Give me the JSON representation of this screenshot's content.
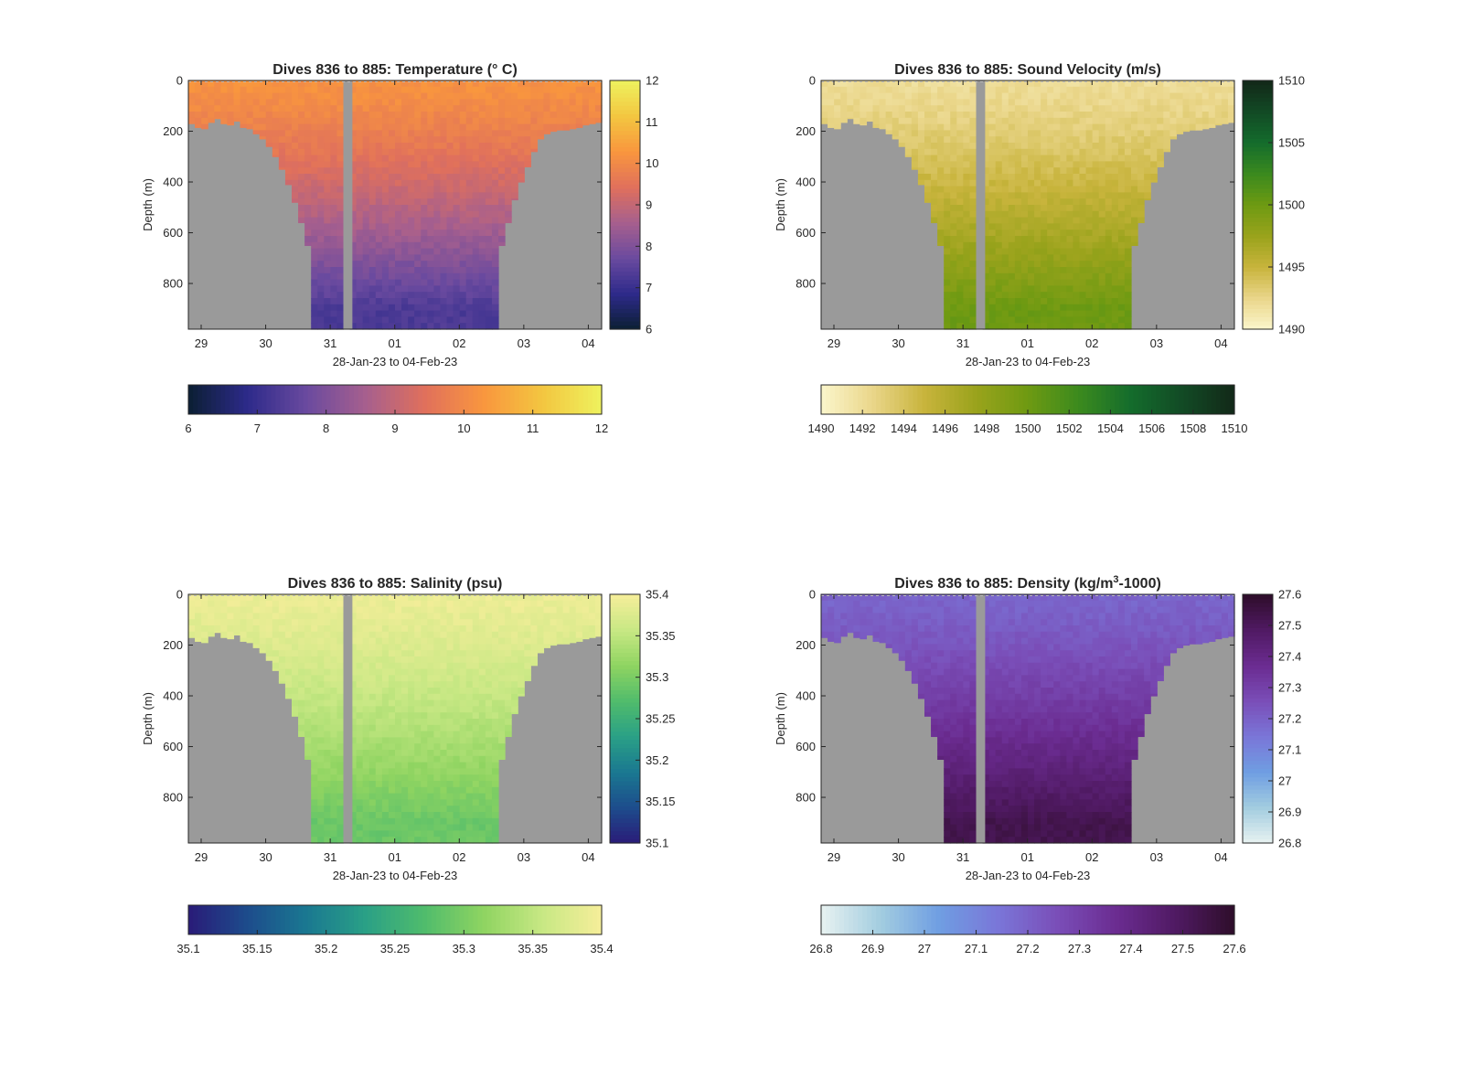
{
  "chart_data": [
    {
      "type": "heatmap",
      "title": "Dives 836 to 885: Temperature (° C)",
      "xlabel": "28-Jan-23 to 04-Feb-23",
      "ylabel": "Depth (m)",
      "x_ticks": [
        "29",
        "30",
        "31",
        "01",
        "02",
        "03",
        "04"
      ],
      "y_ticks": [
        "0",
        "200",
        "400",
        "600",
        "800"
      ],
      "ylim": [
        0,
        980
      ],
      "side_colorbar_ticks": [
        "12",
        "11",
        "10",
        "9",
        "8",
        "7",
        "6"
      ],
      "bottom_colorbar_ticks": [
        "6",
        "7",
        "8",
        "9",
        "10",
        "11",
        "12"
      ],
      "clim": [
        6,
        12
      ],
      "colormap": [
        "#0b1f33",
        "#2d2a8a",
        "#6a4a9f",
        "#a65f8e",
        "#e0705c",
        "#f9963e",
        "#f3c640",
        "#eef25e"
      ],
      "surface_value": 10.2,
      "deep_value": 7.3,
      "gap_color": "#9a9a9a"
    },
    {
      "type": "heatmap",
      "title": "Dives 836 to 885: Sound Velocity (m/s)",
      "xlabel": "28-Jan-23 to 04-Feb-23",
      "ylabel": "Depth (m)",
      "x_ticks": [
        "29",
        "30",
        "31",
        "01",
        "02",
        "03",
        "04"
      ],
      "y_ticks": [
        "0",
        "200",
        "400",
        "600",
        "800"
      ],
      "ylim": [
        0,
        980
      ],
      "side_colorbar_ticks": [
        "1510",
        "1505",
        "1500",
        "1495",
        "1490"
      ],
      "bottom_colorbar_ticks": [
        "1490",
        "1492",
        "1494",
        "1496",
        "1498",
        "1500",
        "1502",
        "1504",
        "1506",
        "1508",
        "1510"
      ],
      "clim": [
        1490,
        1510
      ],
      "colormap": [
        "#fbf6cc",
        "#ead68a",
        "#c8b43c",
        "#9aa31c",
        "#6e9a12",
        "#3b8a1e",
        "#146c2c",
        "#124a25",
        "#122818"
      ],
      "surface_value": 1492.0,
      "deep_value": 1500.0,
      "gap_color": "#9a9a9a"
    },
    {
      "type": "heatmap",
      "title": "Dives 836 to 885: Salinity (psu)",
      "xlabel": "28-Jan-23 to 04-Feb-23",
      "ylabel": "Depth (m)",
      "x_ticks": [
        "29",
        "30",
        "31",
        "01",
        "02",
        "03",
        "04"
      ],
      "y_ticks": [
        "0",
        "200",
        "400",
        "600",
        "800"
      ],
      "ylim": [
        0,
        980
      ],
      "side_colorbar_ticks": [
        "35.4",
        "35.35",
        "35.3",
        "35.25",
        "35.2",
        "35.15",
        "35.1"
      ],
      "bottom_colorbar_ticks": [
        "35.1",
        "35.15",
        "35.2",
        "35.25",
        "35.3",
        "35.35",
        "35.4"
      ],
      "clim": [
        35.1,
        35.4
      ],
      "colormap": [
        "#2a1b78",
        "#1d4c8c",
        "#1a7891",
        "#2aa086",
        "#50bc6c",
        "#8fd461",
        "#c8e884",
        "#f6ee9a"
      ],
      "surface_value": 35.39,
      "deep_value": 35.29,
      "gap_color": "#9a9a9a"
    },
    {
      "type": "heatmap",
      "title": "Dives 836 to 885: Density (kg/m",
      "title_superscript": "3",
      "title_suffix": "-1000)",
      "xlabel": "28-Jan-23 to 04-Feb-23",
      "ylabel": "Depth (m)",
      "x_ticks": [
        "29",
        "30",
        "31",
        "01",
        "02",
        "03",
        "04"
      ],
      "y_ticks": [
        "0",
        "200",
        "400",
        "600",
        "800"
      ],
      "ylim": [
        0,
        980
      ],
      "side_colorbar_ticks": [
        "27.6",
        "27.5",
        "27.4",
        "27.3",
        "27.2",
        "27.1",
        "27",
        "26.9",
        "26.8"
      ],
      "bottom_colorbar_ticks": [
        "26.8",
        "26.9",
        "27",
        "27.1",
        "27.2",
        "27.3",
        "27.4",
        "27.5",
        "27.6"
      ],
      "clim": [
        26.8,
        27.6
      ],
      "colormap": [
        "#e8f2f1",
        "#a3cde0",
        "#6f9ee2",
        "#7a76d8",
        "#7a4eb8",
        "#6b2c91",
        "#501a63",
        "#2e0d2a"
      ],
      "surface_value": 27.19,
      "deep_value": 27.53,
      "gap_color": "#9a9a9a"
    }
  ]
}
